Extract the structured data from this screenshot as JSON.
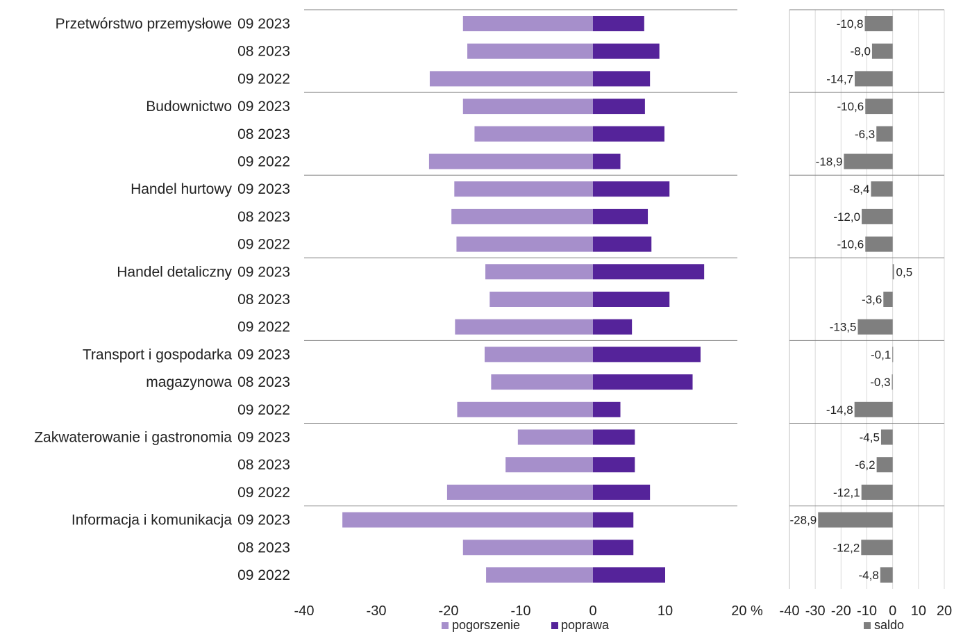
{
  "chart_data": [
    {
      "type": "bar",
      "orientation": "horizontal",
      "stacked": "diverging",
      "groups": [
        {
          "name": "Przetwórstwo przemysłowe",
          "periods": [
            "09 2023",
            "08 2023",
            "09 2022"
          ]
        },
        {
          "name": "Budownictwo",
          "periods": [
            "09 2023",
            "08 2023",
            "09 2022"
          ]
        },
        {
          "name": "Handel hurtowy",
          "periods": [
            "09 2023",
            "08 2023",
            "09 2022"
          ]
        },
        {
          "name": "Handel detaliczny",
          "periods": [
            "09 2023",
            "08 2023",
            "09 2022"
          ]
        },
        {
          "name": "Transport i gospodarka magazynowa",
          "label_lines": [
            "Transport i gospodarka",
            "magazynowa"
          ],
          "periods": [
            "09 2023",
            "08 2023",
            "09 2022"
          ]
        },
        {
          "name": "Zakwaterowanie i gastronomia",
          "periods": [
            "09 2023",
            "08 2023",
            "09 2022"
          ]
        },
        {
          "name": "Informacja i komunikacja",
          "periods": [
            "09 2023",
            "08 2023",
            "09 2022"
          ]
        }
      ],
      "series": [
        {
          "name": "pogorszenie",
          "color": "#a68fcb",
          "values": [
            -18.0,
            -17.4,
            -22.6,
            -18.0,
            -16.4,
            -22.7,
            -19.2,
            -19.6,
            -18.9,
            -14.9,
            -14.3,
            -19.1,
            -15.0,
            -14.1,
            -18.8,
            -10.4,
            -12.1,
            -20.2,
            -34.7,
            -18.0,
            -14.8
          ]
        },
        {
          "name": "poprawa",
          "color": "#55239a",
          "values": [
            7.1,
            9.2,
            7.9,
            7.2,
            9.9,
            3.8,
            10.6,
            7.6,
            8.1,
            15.4,
            10.6,
            5.4,
            14.9,
            13.8,
            3.8,
            5.8,
            5.8,
            7.9,
            5.6,
            5.6,
            10.0
          ]
        }
      ],
      "xlim": [
        -40,
        20
      ],
      "xticks": [
        "-40",
        "-30",
        "-20",
        "-10",
        "0",
        "10",
        "20 %"
      ],
      "legend": "bottom"
    },
    {
      "type": "bar",
      "orientation": "horizontal",
      "series": [
        {
          "name": "saldo",
          "color": "#7f7f7f",
          "values": [
            -10.8,
            -8.0,
            -14.7,
            -10.6,
            -6.3,
            -18.9,
            -8.4,
            -12.0,
            -10.6,
            0.5,
            -3.6,
            -13.5,
            -0.1,
            -0.3,
            -14.8,
            -4.5,
            -6.2,
            -12.1,
            -28.9,
            -12.2,
            -4.8
          ],
          "labels": [
            "-10,8",
            "-8,0",
            "-14,7",
            "-10,6",
            "-6,3",
            "-18,9",
            "-8,4",
            "-12,0",
            "-10,6",
            "0,5",
            "-3,6",
            "-13,5",
            "-0,1",
            "-0,3",
            "-14,8",
            "-4,5",
            "-6,2",
            "-12,1",
            "-28,9",
            "-12,2",
            "-4,8"
          ]
        }
      ],
      "xlim": [
        -40,
        20
      ],
      "xticks": [
        "-40",
        "-30",
        "-20",
        "-10",
        "0",
        "10",
        "20"
      ],
      "grid": true,
      "legend": "bottom"
    }
  ]
}
